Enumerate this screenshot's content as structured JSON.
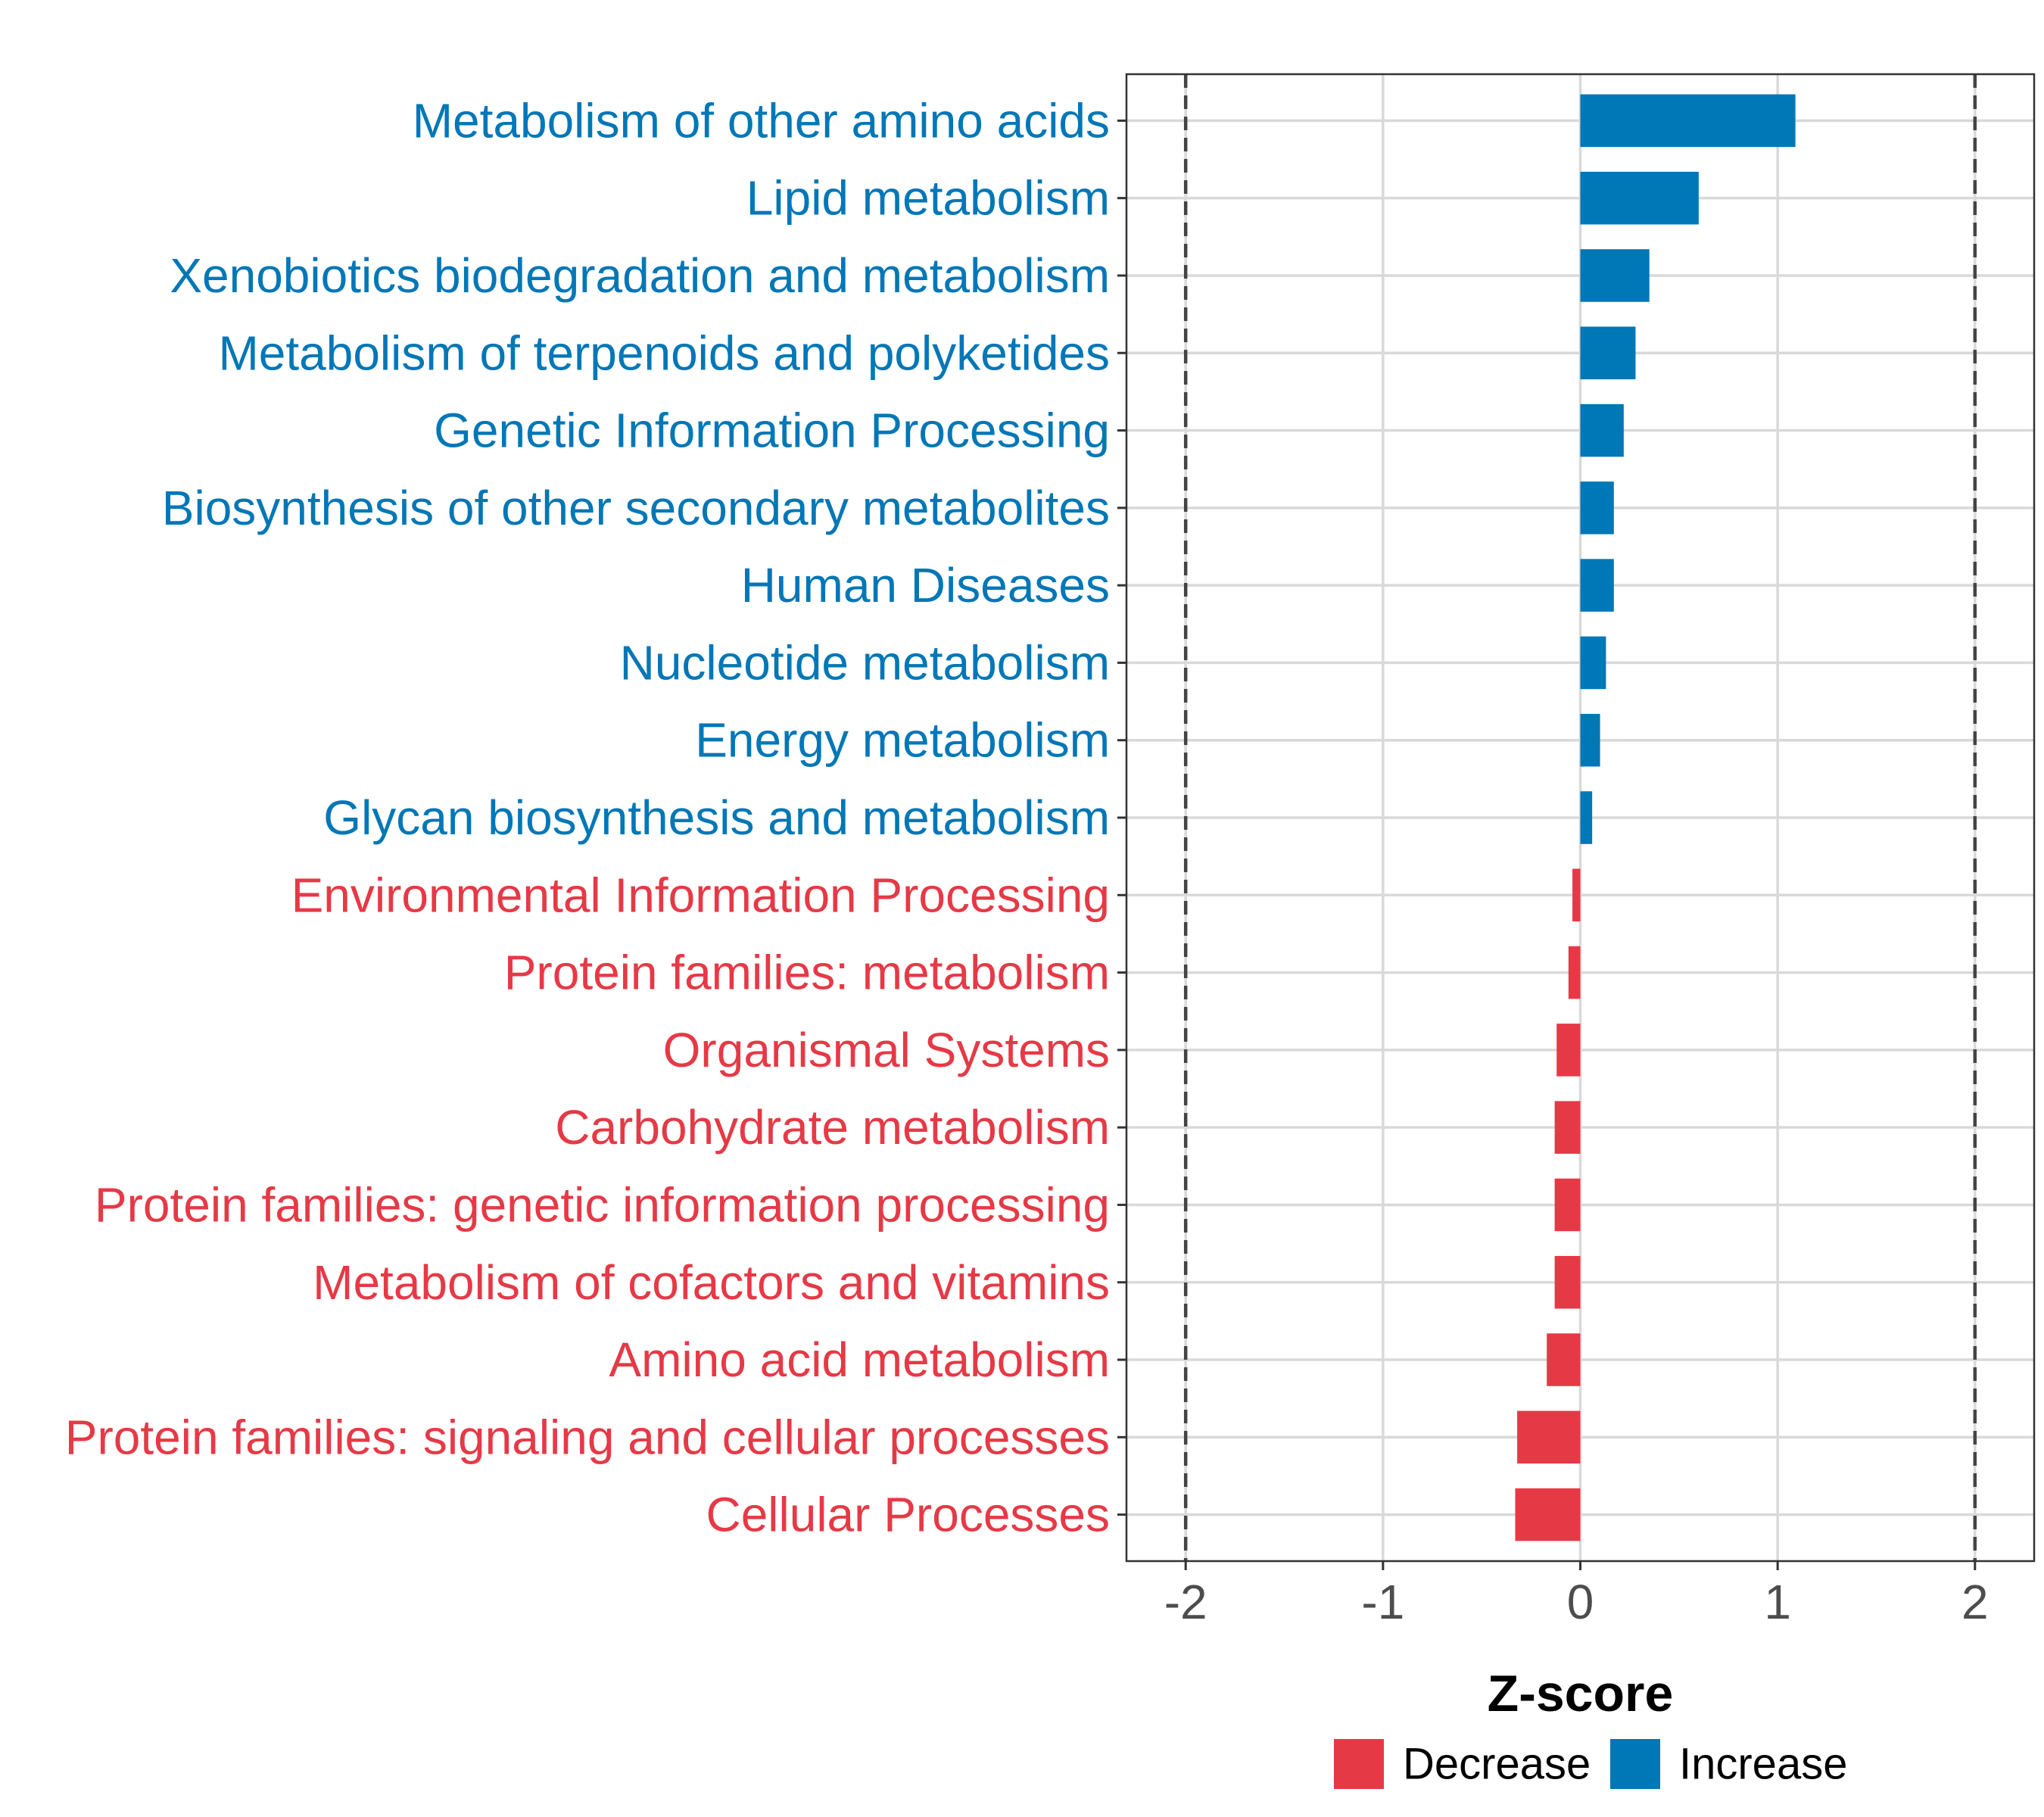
{
  "colors": {
    "increase": "#0077B6",
    "decrease": "#E63946",
    "grid": "#D9D9D9",
    "axis": "#333333",
    "tick_label": "#4D4D4D",
    "reference_line": "#444444"
  },
  "chart_data": {
    "type": "bar",
    "orientation": "horizontal",
    "title": "",
    "xlabel": "Z-score",
    "ylabel": "",
    "xlim": [
      -2.3,
      2.3
    ],
    "xticks": [
      -2,
      -1,
      0,
      1,
      2
    ],
    "xtick_labels": [
      "-2",
      "-1",
      "0",
      "1",
      "2"
    ],
    "reference_lines": [
      -2,
      2
    ],
    "grid": true,
    "legend": {
      "position": "bottom",
      "entries": [
        {
          "label": "Decrease",
          "group": "decrease"
        },
        {
          "label": "Increase",
          "group": "increase"
        }
      ]
    },
    "categories": [
      "Metabolism of other amino acids",
      "Lipid metabolism",
      "Xenobiotics biodegradation and metabolism",
      "Metabolism of terpenoids and polyketides",
      "Genetic Information Processing",
      "Biosynthesis of other secondary metabolites",
      "Human Diseases",
      "Nucleotide metabolism",
      "Energy metabolism",
      "Glycan biosynthesis and metabolism",
      "Environmental Information Processing",
      "Protein families: metabolism",
      "Organismal Systems",
      "Carbohydrate metabolism",
      "Protein families: genetic information processing",
      "Metabolism of cofactors and vitamins",
      "Amino acid metabolism",
      "Protein families: signaling and cellular processes",
      "Cellular Processes"
    ],
    "values": [
      1.09,
      0.6,
      0.35,
      0.28,
      0.22,
      0.17,
      0.17,
      0.13,
      0.1,
      0.06,
      -0.04,
      -0.06,
      -0.12,
      -0.13,
      -0.13,
      -0.13,
      -0.17,
      -0.32,
      -0.33
    ],
    "groups": [
      "increase",
      "increase",
      "increase",
      "increase",
      "increase",
      "increase",
      "increase",
      "increase",
      "increase",
      "increase",
      "decrease",
      "decrease",
      "decrease",
      "decrease",
      "decrease",
      "decrease",
      "decrease",
      "decrease",
      "decrease"
    ]
  }
}
